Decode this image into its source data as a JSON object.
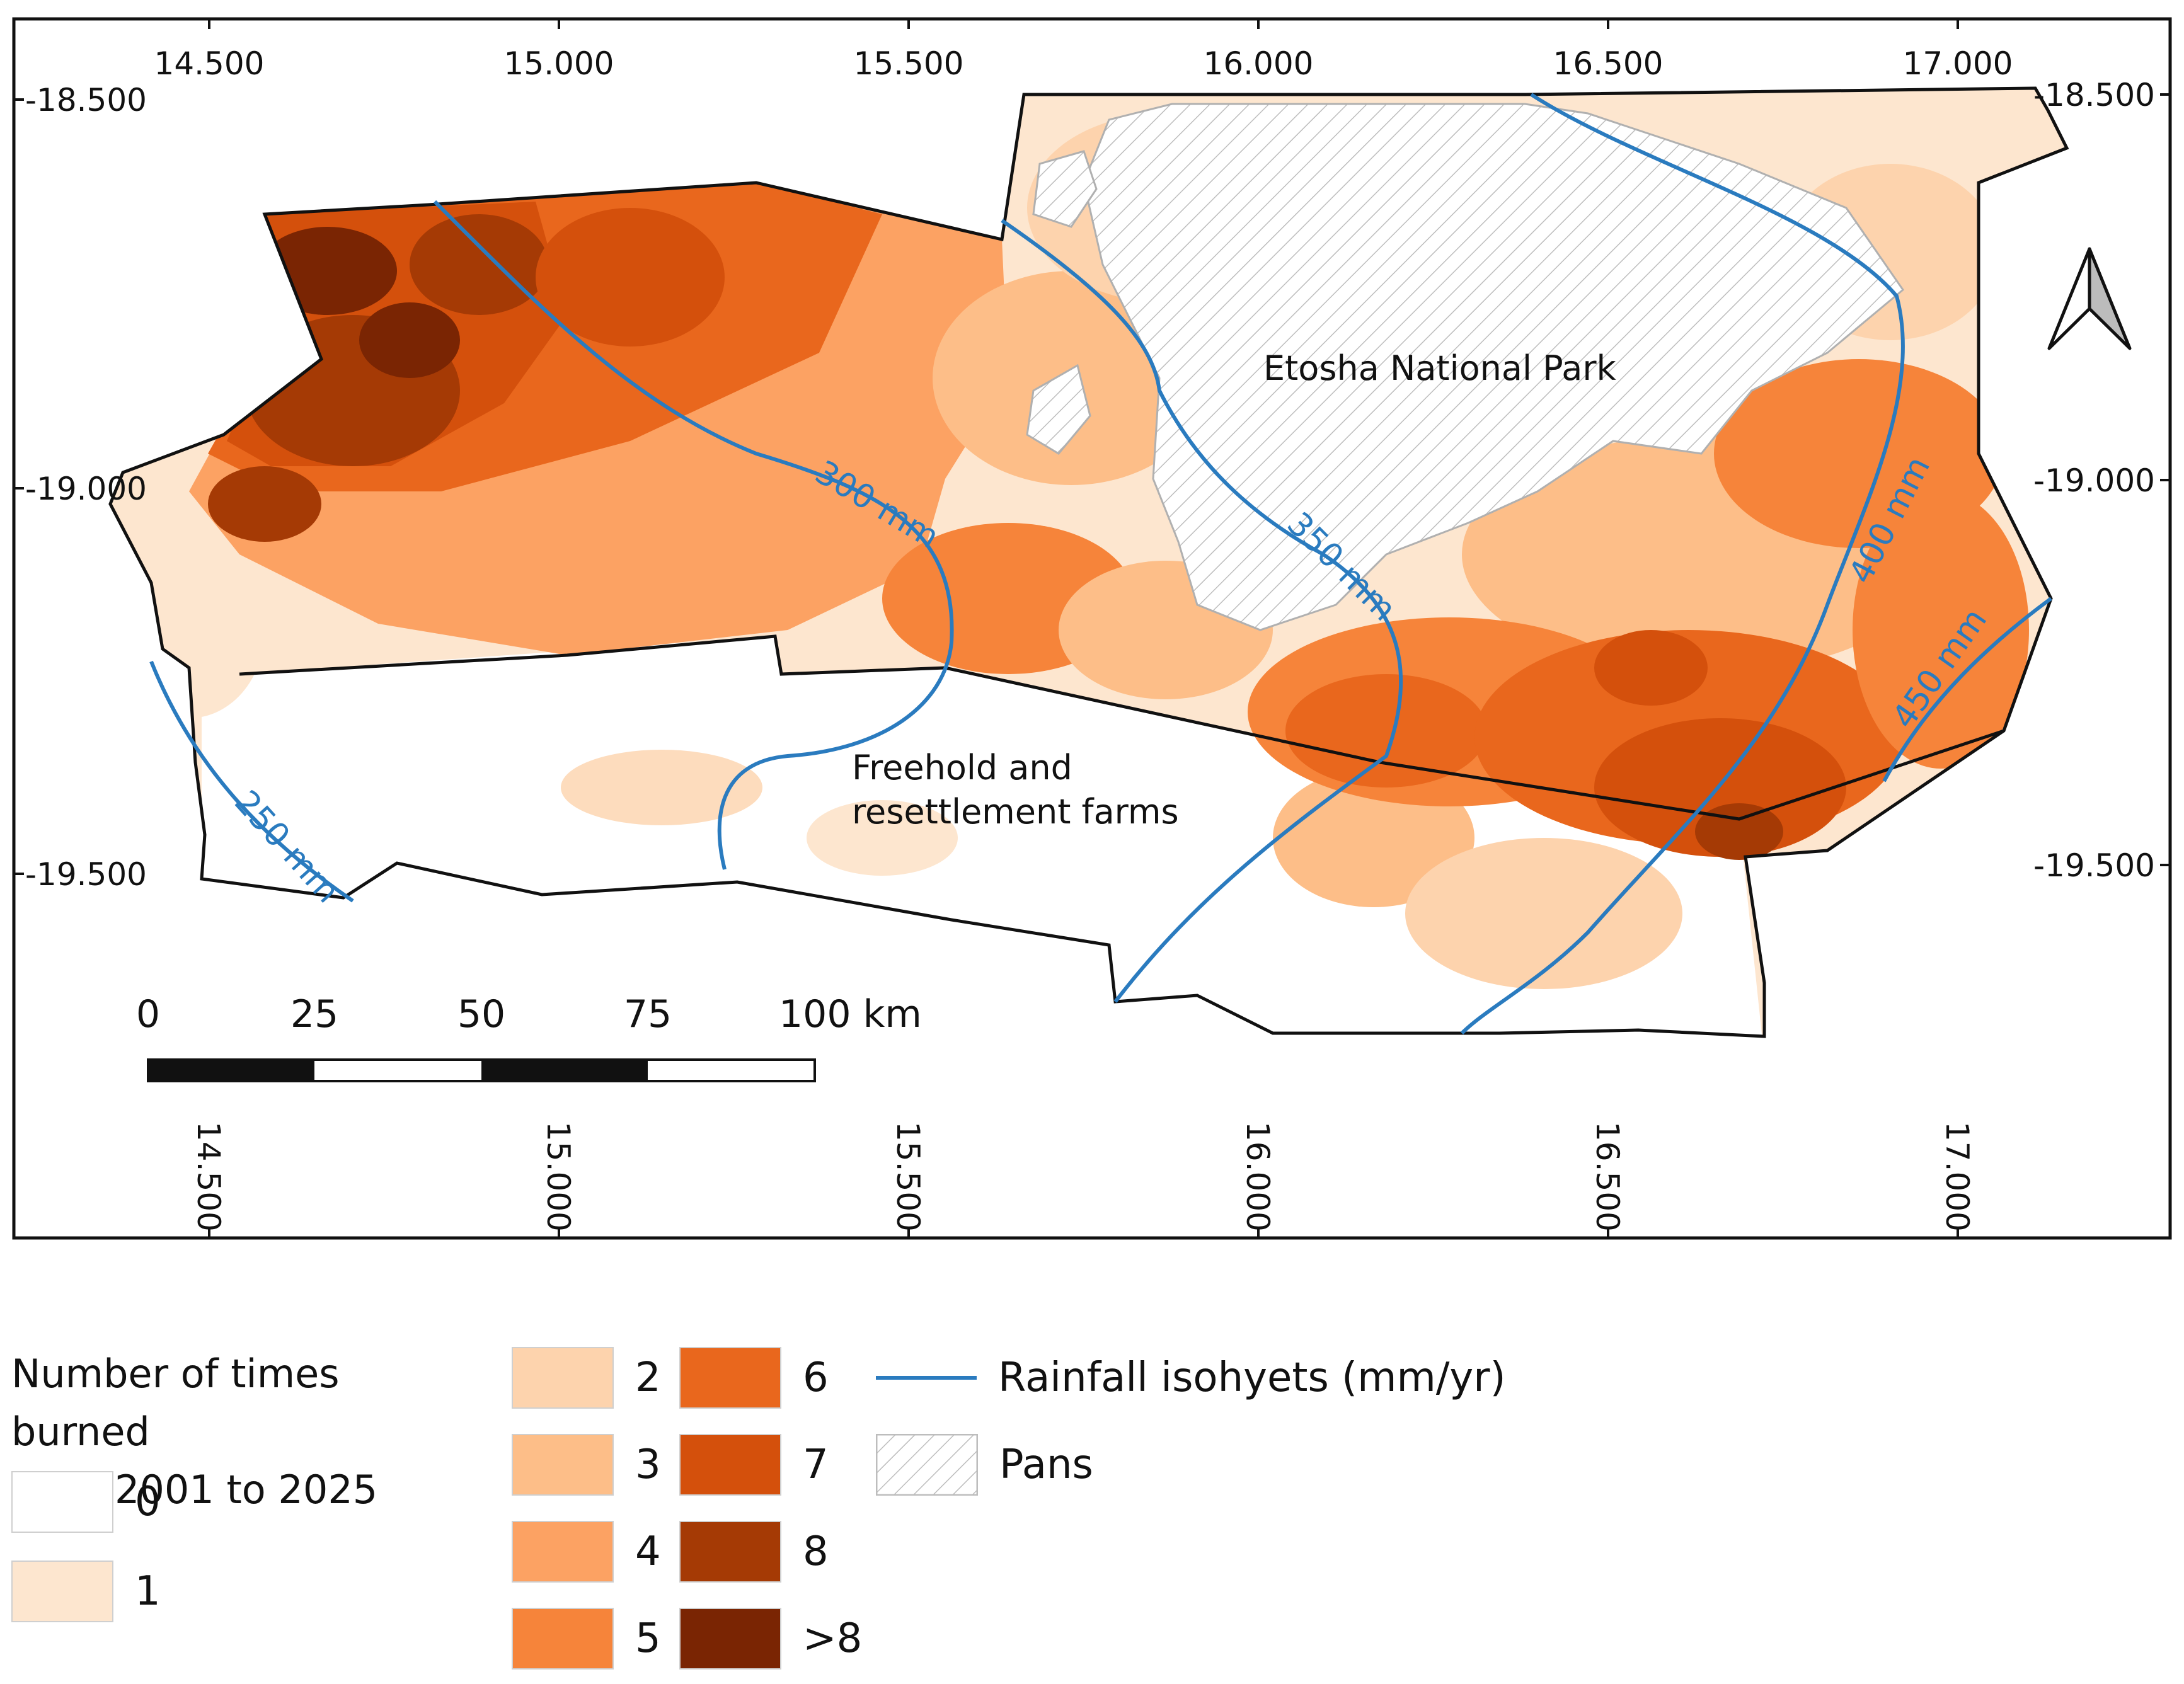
{
  "map": {
    "longitude_ticks": [
      "14.500",
      "15.000",
      "15.500",
      "16.000",
      "16.500",
      "17.000"
    ],
    "latitude_ticks": [
      "-18.500",
      "-19.000",
      "-19.500"
    ],
    "region_labels": {
      "park": "Etosha National Park",
      "farms_line1": "Freehold and",
      "farms_line2": "resettlement farms"
    },
    "isohyets": [
      "250 mm",
      "300 mm",
      "350 mm",
      "400 mm",
      "450 mm"
    ],
    "scale_bar": [
      "0",
      "25",
      "50",
      "75",
      "100 km"
    ],
    "north_arrow": "north-arrow-icon"
  },
  "legend": {
    "title_line1": "Number of times burned",
    "title_line2": "from 2001 to 2025",
    "classes": [
      {
        "label": "0",
        "color": "#ffffff"
      },
      {
        "label": "1",
        "color": "#fde6cf"
      },
      {
        "label": "2",
        "color": "#fdd3ad"
      },
      {
        "label": "3",
        "color": "#fdbe88"
      },
      {
        "label": "4",
        "color": "#fca263"
      },
      {
        "label": "5",
        "color": "#f6843a"
      },
      {
        "label": "6",
        "color": "#e9671d"
      },
      {
        "label": "7",
        "color": "#d4500c"
      },
      {
        "label": "8",
        "color": "#a53a05"
      },
      {
        "label": ">8",
        "color": "#7a2503"
      }
    ],
    "isohyet_label": "Rainfall isohyets (mm/yr)",
    "isohyet_color": "#2a7bbf",
    "pans_label": "Pans"
  }
}
